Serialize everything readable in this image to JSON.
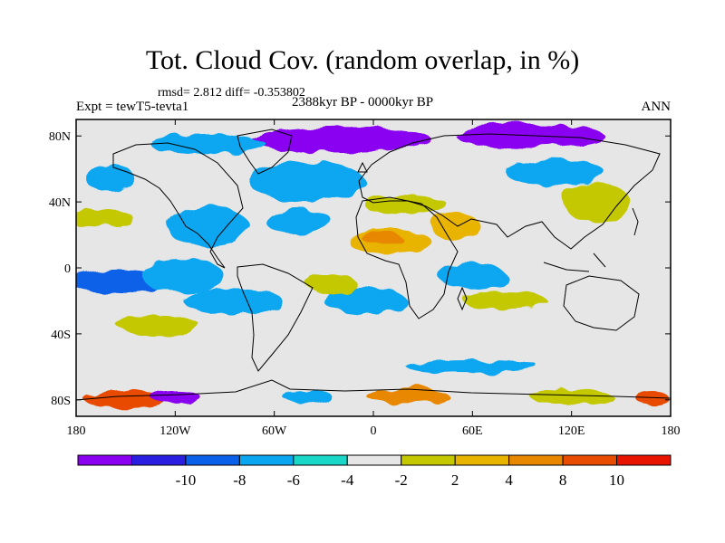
{
  "title": "Tot. Cloud Cov. (random overlap, in %)",
  "stats": "rmsd= 2.812 diff= -0.353802",
  "experiment": "Expt = tewT5-tevta1",
  "period": "2388kyr BP - 0000kyr BP",
  "season": "ANN",
  "map": {
    "lon_range": [
      -180,
      180
    ],
    "lat_range": [
      -90,
      90
    ],
    "background_color": "#e6e6e6",
    "lon_ticks": [
      {
        "value": -180,
        "label": "180"
      },
      {
        "value": -120,
        "label": "120W"
      },
      {
        "value": -60,
        "label": "60W"
      },
      {
        "value": 0,
        "label": "0"
      },
      {
        "value": 60,
        "label": "60E"
      },
      {
        "value": 120,
        "label": "120E"
      },
      {
        "value": 180,
        "label": "180"
      }
    ],
    "lat_ticks": [
      {
        "value": 80,
        "label": "80N"
      },
      {
        "value": 40,
        "label": "40N"
      },
      {
        "value": 0,
        "label": "0"
      },
      {
        "value": -40,
        "label": "40S"
      },
      {
        "value": -80,
        "label": "80S"
      }
    ],
    "anomaly_patches": [
      {
        "region": "Arctic Greenland-Scandinavia",
        "lon": -20,
        "lat": 78,
        "rlon": 55,
        "rlat": 8,
        "level": -10
      },
      {
        "region": "Greenland core",
        "lon": -40,
        "lat": 80,
        "rlon": 25,
        "rlat": 5,
        "level": -12
      },
      {
        "region": "Siberian Arctic",
        "lon": 95,
        "lat": 80,
        "rlon": 45,
        "rlat": 7,
        "level": -10
      },
      {
        "region": "Arctic Canada",
        "lon": -100,
        "lat": 75,
        "rlon": 35,
        "rlat": 6,
        "level": -4
      },
      {
        "region": "North Atlantic",
        "lon": -40,
        "lat": 52,
        "rlon": 35,
        "rlat": 12,
        "level": -4
      },
      {
        "region": "North Pacific",
        "lon": -160,
        "lat": 55,
        "rlon": 15,
        "rlat": 8,
        "level": -4
      },
      {
        "region": "Tropical Atlantic",
        "lon": -45,
        "lat": 28,
        "rlon": 20,
        "rlat": 8,
        "level": -4
      },
      {
        "region": "Eastern Pacific",
        "lon": -100,
        "lat": 25,
        "rlon": 25,
        "rlat": 12,
        "level": -4
      },
      {
        "region": "Western Pacific ITCZ",
        "lon": -155,
        "lat": -8,
        "rlon": 30,
        "rlat": 7,
        "level": -6
      },
      {
        "region": "Central Pacific",
        "lon": -115,
        "lat": -5,
        "rlon": 25,
        "rlat": 10,
        "level": -4
      },
      {
        "region": "South Pacific",
        "lon": -85,
        "lat": -20,
        "rlon": 30,
        "rlat": 8,
        "level": -4
      },
      {
        "region": "South Atlantic",
        "lon": -5,
        "lat": -20,
        "rlon": 25,
        "rlat": 8,
        "level": -4
      },
      {
        "region": "Indian Ocean",
        "lon": 60,
        "lat": -5,
        "rlon": 20,
        "rlat": 8,
        "level": -4
      },
      {
        "region": "Siberia",
        "lon": 110,
        "lat": 58,
        "rlon": 30,
        "rlat": 8,
        "level": -4
      },
      {
        "region": "Sahara",
        "lon": 10,
        "lat": 16,
        "rlon": 25,
        "rlat": 8,
        "level": 6
      },
      {
        "region": "Sahara core",
        "lon": 5,
        "lat": 18,
        "rlon": 12,
        "rlat": 4,
        "level": 9
      },
      {
        "region": "Arabia",
        "lon": 50,
        "lat": 25,
        "rlon": 15,
        "rlat": 8,
        "level": 6
      },
      {
        "region": "Mediterranean",
        "lon": 20,
        "lat": 38,
        "rlon": 25,
        "rlat": 6,
        "level": 3
      },
      {
        "region": "East Asia",
        "lon": 135,
        "lat": 40,
        "rlon": 20,
        "rlat": 12,
        "level": 3
      },
      {
        "region": "North Pacific east",
        "lon": -165,
        "lat": 30,
        "rlon": 20,
        "rlat": 5,
        "level": 3
      },
      {
        "region": "Indian Ocean south",
        "lon": 80,
        "lat": -20,
        "rlon": 25,
        "rlat": 6,
        "level": 3
      },
      {
        "region": "Pacific south",
        "lon": -130,
        "lat": -35,
        "rlon": 25,
        "rlat": 6,
        "level": 3
      },
      {
        "region": "Tropical South Atlantic",
        "lon": -25,
        "lat": -10,
        "rlon": 15,
        "rlat": 6,
        "level": 3
      },
      {
        "region": "Antarctic coast Pacific",
        "lon": -150,
        "lat": -80,
        "rlon": 25,
        "rlat": 5,
        "level": 11
      },
      {
        "region": "Antarctic coast Atlantic",
        "lon": 20,
        "lat": -77,
        "rlon": 25,
        "rlat": 5,
        "level": 9
      },
      {
        "region": "Antarctic Ross",
        "lon": -120,
        "lat": -78,
        "rlon": 15,
        "rlat": 4,
        "level": -10
      },
      {
        "region": "Antarctic Indian",
        "lon": 120,
        "lat": -78,
        "rlon": 25,
        "rlat": 5,
        "level": 3
      },
      {
        "region": "Antarctic east",
        "lon": 170,
        "lat": -80,
        "rlon": 10,
        "rlat": 4,
        "level": 11
      },
      {
        "region": "Antarctic Weddell",
        "lon": -40,
        "lat": -78,
        "rlon": 15,
        "rlat": 4,
        "level": -4
      },
      {
        "region": "Southern Ocean",
        "lon": 60,
        "lat": -60,
        "rlon": 40,
        "rlat": 4,
        "level": -4
      }
    ]
  },
  "colorbar": {
    "colors": [
      "#8a00f0",
      "#2a1ee0",
      "#0a60e8",
      "#0aa6f0",
      "#18d6c8",
      "#e6e6e6",
      "#c4c800",
      "#e8b400",
      "#e88800",
      "#e84c00",
      "#e81400"
    ],
    "labels": [
      "-10",
      "-8",
      "-6",
      "-4",
      "-2",
      "2",
      "4",
      "8",
      "10"
    ]
  }
}
